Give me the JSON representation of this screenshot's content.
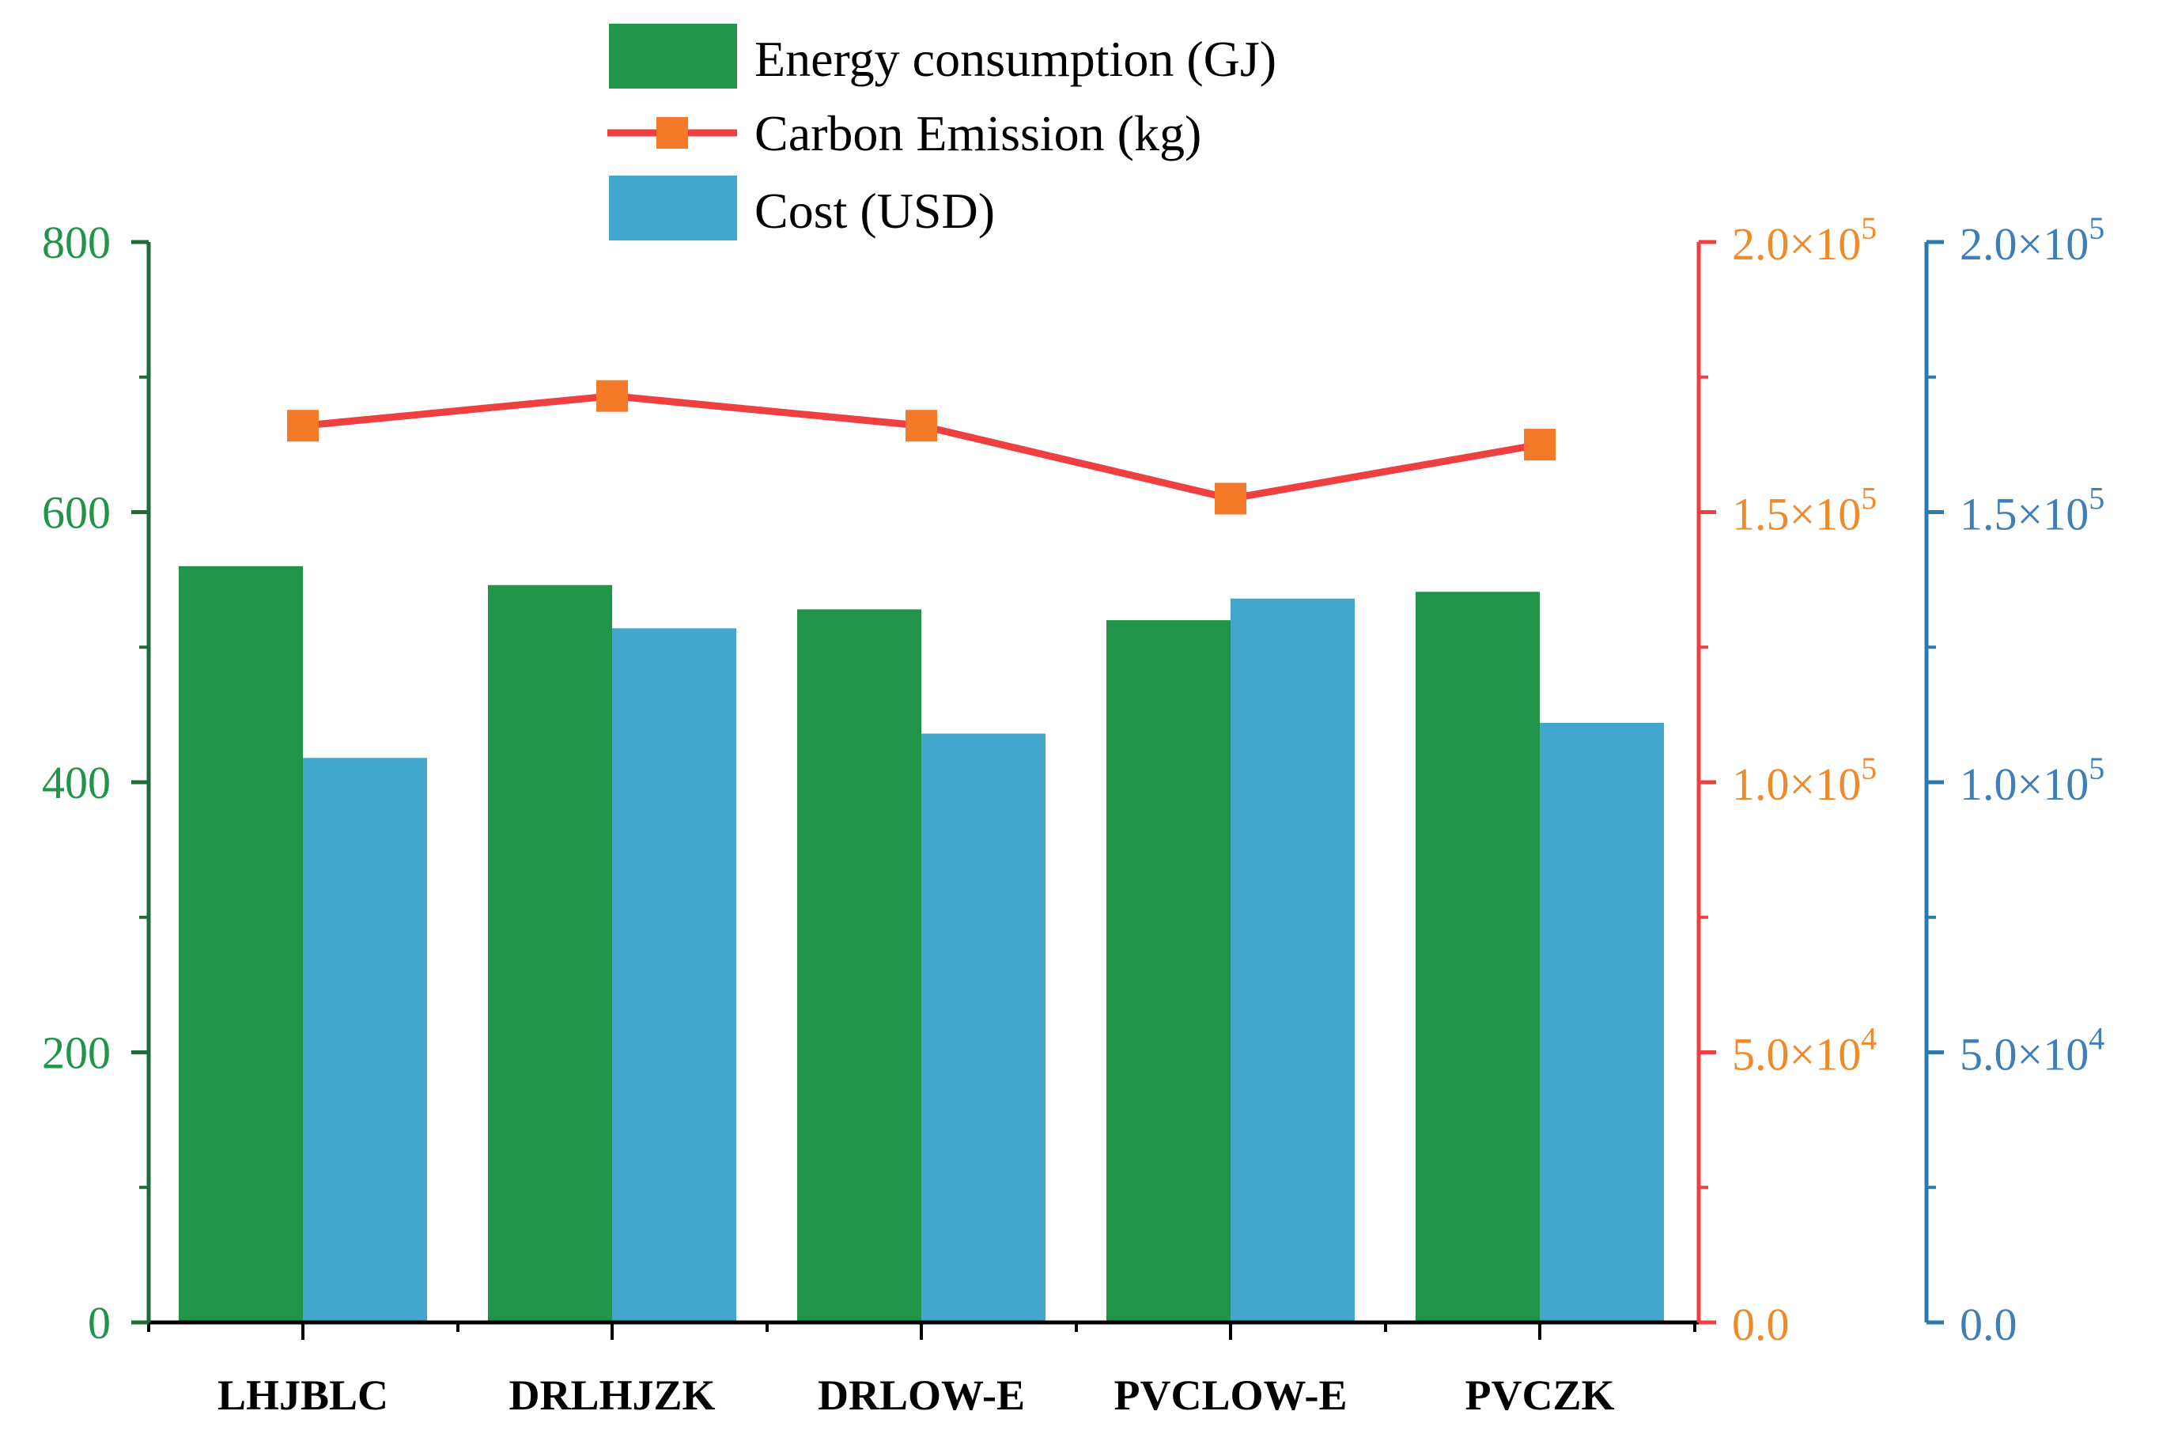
{
  "colors": {
    "energy": "#21944a",
    "energy_axis": "#1e6b3a",
    "energy_ticks": "#21944a",
    "carbon_line": "#ee4040",
    "carbon_marker": "#f47a2a",
    "carbon_ticks": "#ee8a2a",
    "cost": "#43a6cc",
    "cost_axis": "#2e78b0",
    "cost_ticks": "#3f7fb5"
  },
  "chart_data": {
    "type": "bar",
    "title": "",
    "xlabel": "",
    "categories": [
      "LHJBLC",
      "DRLHJZK",
      "DRLOW-E",
      "PVCLOW-E",
      "PVCZK"
    ],
    "series": [
      {
        "name": "Energy consumption (GJ)",
        "type": "bar",
        "axis": "left",
        "values": [
          560,
          546,
          528,
          520,
          541
        ]
      },
      {
        "name": "Carbon Emission (kg)",
        "type": "line",
        "axis": "right1",
        "values": [
          166000,
          171500,
          166000,
          152500,
          162500
        ]
      },
      {
        "name": "Cost (USD)",
        "type": "bar",
        "axis": "right2",
        "values": [
          104500,
          128500,
          109000,
          134000,
          111000
        ]
      }
    ],
    "legend": [
      "Energy consumption (GJ)",
      "Carbon Emission (kg)",
      "Cost (USD)"
    ],
    "legend_position": "top-center",
    "axes": {
      "left": {
        "label": "",
        "ylim": [
          0,
          800
        ],
        "ticks": [
          0,
          200,
          400,
          600,
          800
        ],
        "tick_labels": [
          "0",
          "200",
          "400",
          "600",
          "800"
        ]
      },
      "right1": {
        "label": "",
        "ylim": [
          0,
          200000
        ],
        "ticks": [
          0,
          50000,
          100000,
          150000,
          200000
        ],
        "tick_labels": [
          {
            "mantissa": "0.0",
            "exp": ""
          },
          {
            "mantissa": "5.0×10",
            "exp": "4"
          },
          {
            "mantissa": "1.0×10",
            "exp": "5"
          },
          {
            "mantissa": "1.5×10",
            "exp": "5"
          },
          {
            "mantissa": "2.0×10",
            "exp": "5"
          }
        ]
      },
      "right2": {
        "label": "",
        "ylim": [
          0,
          200000
        ],
        "ticks": [
          0,
          50000,
          100000,
          150000,
          200000
        ],
        "tick_labels": [
          {
            "mantissa": "0.0",
            "exp": ""
          },
          {
            "mantissa": "5.0×10",
            "exp": "4"
          },
          {
            "mantissa": "1.0×10",
            "exp": "5"
          },
          {
            "mantissa": "1.5×10",
            "exp": "5"
          },
          {
            "mantissa": "2.0×10",
            "exp": "5"
          }
        ]
      }
    },
    "grid": false
  }
}
